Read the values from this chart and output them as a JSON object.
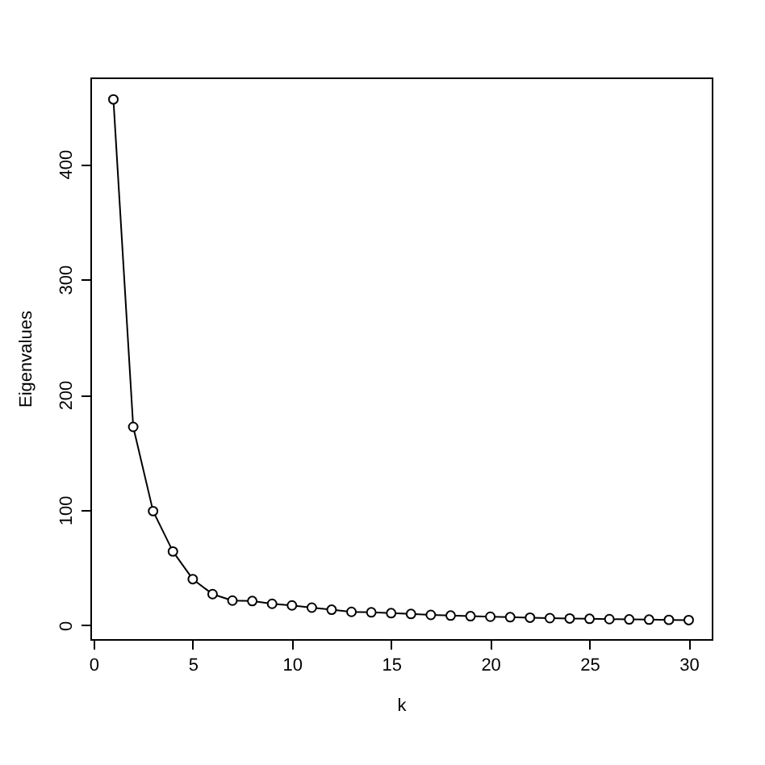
{
  "chart_data": {
    "type": "line",
    "xlabel": "k",
    "ylabel": "Eigenvalues",
    "x": [
      1,
      2,
      3,
      4,
      5,
      6,
      7,
      8,
      9,
      10,
      11,
      12,
      13,
      14,
      15,
      16,
      17,
      18,
      19,
      20,
      21,
      22,
      23,
      24,
      25,
      26,
      27,
      28,
      29,
      30
    ],
    "series": [
      {
        "color": "#000000",
        "values": [
          456,
          172,
          99,
          64,
          40,
          27,
          21.4,
          21,
          18.6,
          17.2,
          15.3,
          13.5,
          11.6,
          11.2,
          10.5,
          9.8,
          9,
          8.4,
          7.9,
          7.4,
          7,
          6.6,
          6.2,
          5.9,
          5.6,
          5.3,
          5.1,
          4.9,
          4.7,
          4.5
        ]
      }
    ],
    "xlim": [
      -0.16,
      31.16
    ],
    "xticks": [
      0,
      5,
      10,
      15,
      20,
      25,
      30
    ],
    "ylim": [
      -12,
      475
    ],
    "yticks": [
      0,
      100,
      200,
      300,
      400
    ],
    "marker": "circle",
    "line_style": "solid",
    "grid": false,
    "legend": false
  }
}
